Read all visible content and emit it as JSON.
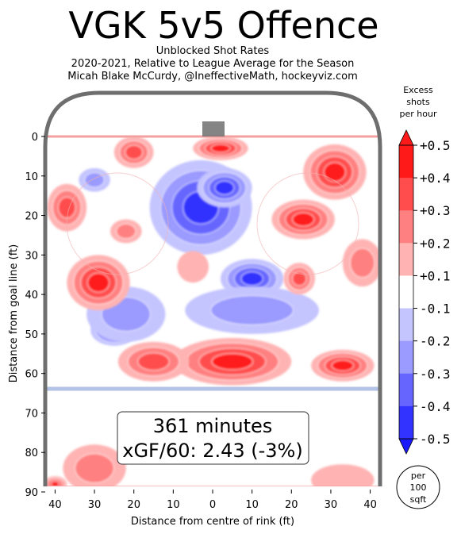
{
  "chart_data": {
    "type": "heatmap",
    "title": "VGK 5v5 Offence",
    "subtitle_lines": [
      "Unblocked Shot Rates",
      "2020-2021, Relative to League Average for the Season",
      "Micah Blake McCurdy, @IneffectiveMath, hockeyviz.com"
    ],
    "xlabel": "Distance from centre of rink (ft)",
    "ylabel": "Distance from goal line (ft)",
    "xlim": [
      -42.5,
      42.5
    ],
    "ylim": [
      0,
      90
    ],
    "x_ticks": [
      40,
      30,
      20,
      10,
      0,
      10,
      20,
      30,
      40
    ],
    "y_ticks": [
      0,
      10,
      20,
      30,
      40,
      50,
      60,
      70,
      80,
      90
    ],
    "colorbar": {
      "title_lines": [
        "Excess",
        "shots",
        "per hour"
      ],
      "tick_labels": [
        "+0.5",
        "+0.4",
        "+0.3",
        "+0.2",
        "+0.1",
        "-0.1",
        "-0.2",
        "-0.3",
        "-0.4",
        "-0.5"
      ],
      "colors": [
        "#ff1a1a",
        "#ff4d4d",
        "#ff8080",
        "#ffb3b3",
        "#ffffff",
        "#c4c4ff",
        "#9a9aff",
        "#6666ff",
        "#3333ff"
      ]
    },
    "summary": {
      "minutes_line": "361 minutes",
      "xgf_line": "xGF/60: 2.43 (-3%)"
    },
    "unit_badge_lines": [
      "per",
      "100",
      "sqft"
    ],
    "blobs": [
      {
        "x": -3,
        "y": 18,
        "rx": 13,
        "ry": 12,
        "v": -0.55
      },
      {
        "x": 3,
        "y": 13,
        "rx": 7,
        "ry": 5,
        "v": -0.6
      },
      {
        "x": 10,
        "y": 36,
        "rx": 8,
        "ry": 5,
        "v": -0.45
      },
      {
        "x": 10,
        "y": 44,
        "rx": 17,
        "ry": 6,
        "v": -0.22
      },
      {
        "x": -25,
        "y": 49,
        "rx": 6,
        "ry": 4,
        "v": -0.55
      },
      {
        "x": -22,
        "y": 45,
        "rx": 10,
        "ry": 7,
        "v": -0.25
      },
      {
        "x": -30,
        "y": 11,
        "rx": 4,
        "ry": 3,
        "v": -0.2
      },
      {
        "x": 2,
        "y": 3,
        "rx": 7,
        "ry": 3,
        "v": 0.5
      },
      {
        "x": -20,
        "y": 4,
        "rx": 5,
        "ry": 4,
        "v": 0.4
      },
      {
        "x": 31,
        "y": 9,
        "rx": 8,
        "ry": 7,
        "v": 0.45
      },
      {
        "x": 23,
        "y": 21,
        "rx": 8,
        "ry": 5,
        "v": 0.45
      },
      {
        "x": -29,
        "y": 37,
        "rx": 8,
        "ry": 7,
        "v": 0.5
      },
      {
        "x": -22,
        "y": 24,
        "rx": 4,
        "ry": 3,
        "v": 0.3
      },
      {
        "x": -37,
        "y": 18,
        "rx": 5,
        "ry": 6,
        "v": 0.35
      },
      {
        "x": 5,
        "y": 57,
        "rx": 15,
        "ry": 6,
        "v": 0.5
      },
      {
        "x": -15,
        "y": 57,
        "rx": 9,
        "ry": 5,
        "v": 0.4
      },
      {
        "x": 33,
        "y": 58,
        "rx": 8,
        "ry": 4,
        "v": 0.45
      },
      {
        "x": 22,
        "y": 36,
        "rx": 4,
        "ry": 4,
        "v": 0.35
      },
      {
        "x": 38,
        "y": 32,
        "rx": 5,
        "ry": 6,
        "v": 0.25
      },
      {
        "x": -5,
        "y": 33,
        "rx": 4,
        "ry": 4,
        "v": 0.15
      },
      {
        "x": -30,
        "y": 84,
        "rx": 8,
        "ry": 6,
        "v": 0.2
      },
      {
        "x": 33,
        "y": 87,
        "rx": 8,
        "ry": 4,
        "v": 0.15
      },
      {
        "x": -40,
        "y": 88,
        "rx": 3,
        "ry": 2,
        "v": 0.45
      }
    ]
  }
}
